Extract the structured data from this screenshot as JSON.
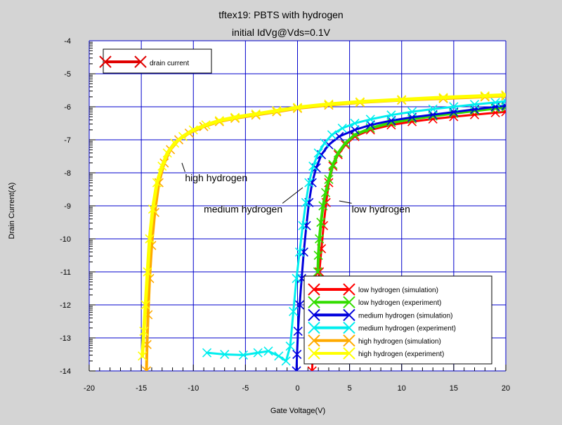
{
  "chart_data": {
    "type": "line",
    "title": "tftex19: PBTS with hydrogen",
    "subtitle": "initial IdVg@Vds=0.1V",
    "xlabel": "Gate Voltage(V)",
    "ylabel": "Drain Current(A)",
    "xlim": [
      -20,
      20
    ],
    "ylim": [
      -14,
      -4
    ],
    "xticks": [
      -20,
      -15,
      -10,
      -5,
      0,
      5,
      10,
      15,
      20
    ],
    "yticks": [
      -14,
      -13,
      -12,
      -11,
      -10,
      -9,
      -8,
      -7,
      -6,
      -5,
      -4
    ],
    "grid": true,
    "background": "#ffffff",
    "grid_color": "#0000cc",
    "legend_top": {
      "position": "top-left",
      "entries": [
        {
          "name": "drain current",
          "color": "#e00000"
        }
      ]
    },
    "legend": {
      "position": "bottom-right",
      "entries": [
        {
          "name": "low hydrogen (simulation)",
          "color": "#ff0000"
        },
        {
          "name": "low hydrogen (experiment)",
          "color": "#33dd00"
        },
        {
          "name": "medium hydrogen (simulation)",
          "color": "#0000dd"
        },
        {
          "name": "medium hydrogen (experiment)",
          "color": "#00eeee"
        },
        {
          "name": "high hydrogen (simulation)",
          "color": "#ffaa00"
        },
        {
          "name": "high hydrogen (experiment)",
          "color": "#ffff00"
        }
      ]
    },
    "annotations": [
      {
        "text": "high hydrogen",
        "x": -10.8,
        "y": -8.25,
        "target": [
          -11.1,
          -7.7
        ]
      },
      {
        "text": "medium hydrogen",
        "x": -9.0,
        "y": -9.2,
        "target": [
          0.5,
          -8.45
        ]
      },
      {
        "text": "low hydrogen",
        "x": 5.2,
        "y": -9.2,
        "target": [
          4.0,
          -8.85
        ]
      }
    ],
    "series": [
      {
        "name": "low hydrogen (simulation)",
        "color": "#ff0000",
        "width": 3,
        "x": [
          1.4,
          1.45,
          1.55,
          1.7,
          1.9,
          2.1,
          2.3,
          2.5,
          2.75,
          3.0,
          3.4,
          3.9,
          4.6,
          5.5,
          7,
          9,
          11,
          13,
          15,
          17,
          19,
          20
        ],
        "y": [
          -14.0,
          -13.6,
          -13.0,
          -12.4,
          -11.7,
          -11.0,
          -10.3,
          -9.6,
          -8.9,
          -8.3,
          -7.8,
          -7.45,
          -7.15,
          -6.9,
          -6.7,
          -6.55,
          -6.45,
          -6.37,
          -6.3,
          -6.24,
          -6.18,
          -6.15
        ]
      },
      {
        "name": "low hydrogen (experiment)",
        "color": "#33dd00",
        "width": 4,
        "x": [
          1.95,
          2.0,
          2.1,
          2.25,
          2.45,
          2.7,
          3.0,
          3.4,
          3.9,
          4.6,
          5.5,
          7,
          9,
          11,
          13,
          15,
          17,
          19,
          20
        ],
        "y": [
          -11.0,
          -10.5,
          -10.0,
          -9.5,
          -9.0,
          -8.6,
          -8.2,
          -7.75,
          -7.4,
          -7.1,
          -6.85,
          -6.65,
          -6.48,
          -6.37,
          -6.28,
          -6.2,
          -6.12,
          -6.05,
          -6.02
        ]
      },
      {
        "name": "medium hydrogen (simulation)",
        "color": "#0000dd",
        "width": 3,
        "x": [
          -0.1,
          -0.05,
          0.05,
          0.2,
          0.4,
          0.6,
          0.85,
          1.1,
          1.4,
          1.8,
          2.3,
          3.0,
          4.0,
          5.5,
          7,
          9,
          11,
          13,
          15,
          17,
          19,
          20
        ],
        "y": [
          -14.0,
          -13.5,
          -12.8,
          -12.0,
          -11.2,
          -10.4,
          -9.6,
          -8.9,
          -8.3,
          -7.85,
          -7.45,
          -7.15,
          -6.9,
          -6.7,
          -6.55,
          -6.42,
          -6.32,
          -6.24,
          -6.16,
          -6.08,
          -6.0,
          -5.97
        ]
      },
      {
        "name": "medium hydrogen (experiment)",
        "color": "#00eeee",
        "width": 3,
        "x": [
          -8.7,
          -7,
          -5.2,
          -3.8,
          -2.8,
          -1.8,
          -1.1,
          -0.7,
          -0.4,
          -0.1,
          0.2,
          0.5,
          0.8,
          1.1,
          1.5,
          2.0,
          2.6,
          3.3,
          4.3,
          5.5,
          7,
          9,
          11,
          13,
          15,
          17,
          19,
          20
        ],
        "y": [
          -13.45,
          -13.5,
          -13.52,
          -13.45,
          -13.4,
          -13.55,
          -13.7,
          -13.25,
          -12.2,
          -11.2,
          -10.4,
          -9.6,
          -8.9,
          -8.3,
          -7.8,
          -7.4,
          -7.1,
          -6.85,
          -6.65,
          -6.5,
          -6.38,
          -6.25,
          -6.15,
          -6.07,
          -6.0,
          -5.93,
          -5.87,
          -5.83
        ]
      },
      {
        "name": "high hydrogen (simulation)",
        "color": "#ffaa00",
        "width": 4,
        "x": [
          -14.5,
          -14.45,
          -14.35,
          -14.2,
          -14.0,
          -13.7,
          -13.3,
          -12.8,
          -12.2,
          -11.4,
          -10.4,
          -9.0,
          -7.5,
          -6,
          -4,
          -2,
          0,
          3,
          6,
          10,
          14,
          18,
          20
        ],
        "y": [
          -14.0,
          -13.2,
          -12.3,
          -11.2,
          -10.2,
          -9.2,
          -8.3,
          -7.7,
          -7.3,
          -7.0,
          -6.8,
          -6.6,
          -6.45,
          -6.35,
          -6.25,
          -6.15,
          -6.05,
          -5.95,
          -5.87,
          -5.8,
          -5.75,
          -5.7,
          -5.67
        ]
      },
      {
        "name": "high hydrogen (experiment)",
        "color": "#ffff00",
        "width": 5,
        "x": [
          -14.9,
          -14.75,
          -14.6,
          -14.4,
          -14.2,
          -13.9,
          -13.5,
          -13.0,
          -12.5,
          -11.8,
          -11.0,
          -10.0,
          -8.8,
          -7.5,
          -6,
          -4,
          -2,
          0,
          3,
          6,
          10,
          14,
          18,
          20
        ],
        "y": [
          -13.55,
          -12.8,
          -12.0,
          -11.0,
          -10.0,
          -9.1,
          -8.3,
          -7.8,
          -7.4,
          -7.1,
          -6.9,
          -6.7,
          -6.55,
          -6.42,
          -6.32,
          -6.22,
          -6.12,
          -6.02,
          -5.92,
          -5.85,
          -5.78,
          -5.72,
          -5.67,
          -5.64
        ]
      }
    ]
  }
}
